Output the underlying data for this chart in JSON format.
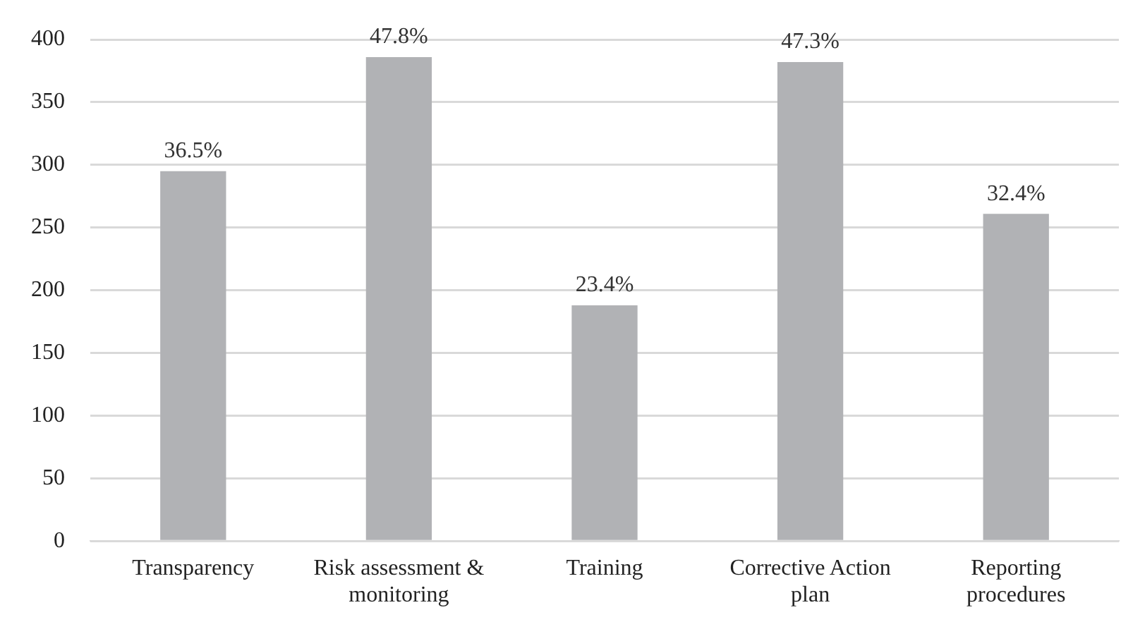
{
  "chart_data": {
    "type": "bar",
    "categories": [
      "Transparency",
      "Risk assessment & monitoring",
      "Training",
      "Corrective Action plan",
      "Reporting procedures"
    ],
    "values": [
      295,
      386,
      188,
      382,
      261
    ],
    "color": "#b1b2b5",
    "ylim": [
      0,
      400
    ],
    "yticks": [
      0,
      50,
      100,
      150,
      200,
      250,
      300,
      350,
      400
    ],
    "grid": "y",
    "legend": false,
    "annotations": [
      {
        "text": "36.5%",
        "x": "Transparency",
        "y": 295
      },
      {
        "text": "47.8%",
        "x": "Risk assessment & monitoring",
        "y": 386
      },
      {
        "text": "23.4%",
        "x": "Training",
        "y": 188
      },
      {
        "text": "47.3%",
        "x": "Corrective Action plan",
        "y": 382
      },
      {
        "text": "32.4%",
        "x": "Reporting procedures",
        "y": 261
      }
    ]
  }
}
